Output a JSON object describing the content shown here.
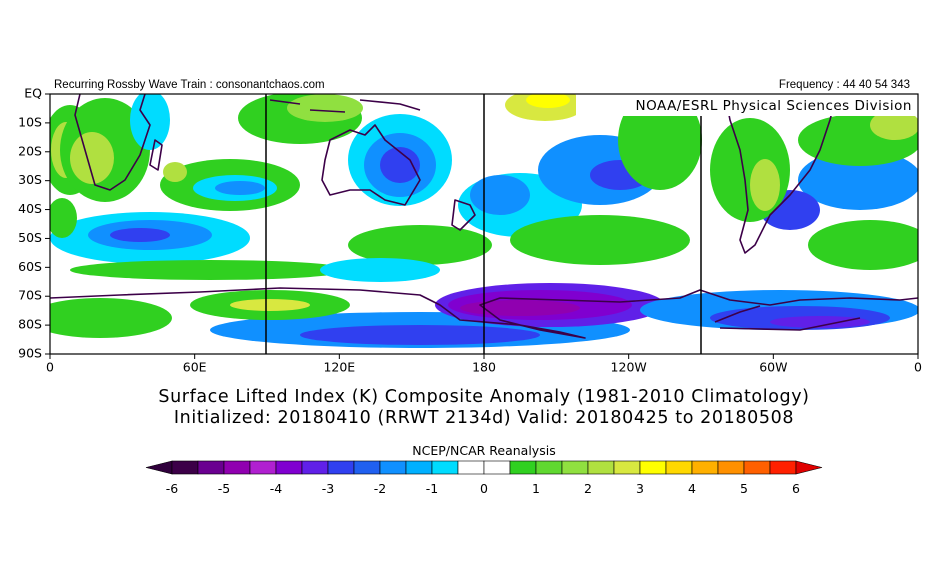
{
  "header": {
    "left": "Recurring Rossby Wave Train : consonantchaos.com",
    "right": "Frequency : 44 40 54 343"
  },
  "map": {
    "credit": "NOAA/ESRL Physical Sciences Division",
    "lat_labels": [
      "EQ",
      "10S",
      "20S",
      "30S",
      "40S",
      "50S",
      "60S",
      "70S",
      "80S",
      "90S"
    ],
    "lon_labels": [
      "0",
      "60E",
      "120E",
      "180",
      "120W",
      "60W",
      "0"
    ]
  },
  "title": {
    "line1": "Surface Lifted Index (K) Composite Anomaly (1981-2010 Climatology)",
    "line2": "Initialized: 20180410 (RRWT 2134d) Valid: 20180425 to 20180508"
  },
  "colorbar": {
    "label": "NCEP/NCAR Reanalysis",
    "ticks": [
      -6,
      -5,
      -4,
      -3,
      -2,
      -1,
      0,
      1,
      2,
      3,
      4,
      5,
      6
    ]
  }
}
